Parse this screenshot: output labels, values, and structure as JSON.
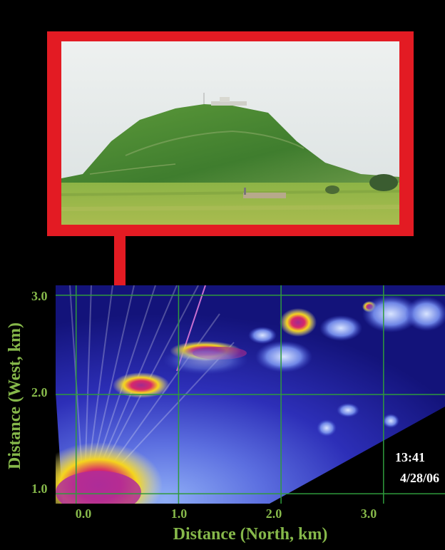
{
  "figure": {
    "photo_subject": "grassy coastal hill with structures on summit",
    "accent_colors": {
      "frame_red": "#e31b23",
      "axis_green": "#86b84a",
      "grid_green": "#2f9a3c",
      "background": "#000000"
    }
  },
  "lidar_plot": {
    "xlabel": "Distance (North, km)",
    "ylabel": "Distance (West, km)",
    "x_ticks": [
      "0.0",
      "1.0",
      "2.0",
      "3.0"
    ],
    "y_ticks": [
      "1.0",
      "2.0",
      "3.0"
    ],
    "xlim": [
      -0.2,
      3.6
    ],
    "ylim": [
      0.9,
      3.1
    ],
    "grid": true,
    "time": "13:41",
    "date": "4/28/06",
    "plume_regions": [
      {
        "x_km": 0.7,
        "y_km": 2.1
      },
      {
        "x_km": 1.45,
        "y_km": 2.45
      },
      {
        "x_km": 2.3,
        "y_km": 2.75
      },
      {
        "x_km": 0.35,
        "y_km": 1.0
      }
    ]
  }
}
